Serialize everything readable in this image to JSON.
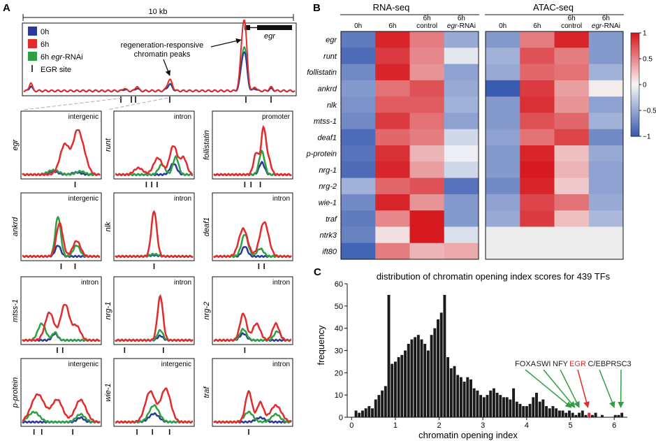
{
  "panel_a": {
    "letter": "A",
    "scale_label": "10 kb",
    "legend": [
      {
        "label": "0h",
        "color": "#2b3a94"
      },
      {
        "label": "6h",
        "color": "#e32b2b"
      },
      {
        "label_prefix": "6h ",
        "label_italic": "egr",
        "label_suffix": "-RNAi",
        "color": "#2ea043"
      },
      {
        "label": "EGR site"
      }
    ],
    "annotation_line1": "regeneration-responsive",
    "annotation_line2": "chromatin peaks",
    "gene_label": "egr",
    "grid_rows": [
      [
        {
          "gene": "egr",
          "region": "intergenic"
        },
        {
          "gene": "runt",
          "region": "intron"
        },
        {
          "gene": "follistatin",
          "region": "promoter"
        }
      ],
      [
        {
          "gene": "ankrd",
          "region": "intergenic"
        },
        {
          "gene": "nlk",
          "region": "intron"
        },
        {
          "gene": "deaf1",
          "region": "intron"
        }
      ],
      [
        {
          "gene": "mtss-1",
          "region": "intron"
        },
        {
          "gene": "nrg-1",
          "region": "intron"
        },
        {
          "gene": "nrg-2",
          "region": "intron"
        }
      ],
      [
        {
          "gene": "p-protein",
          "region": "intergenic"
        },
        {
          "gene": "wie-1",
          "region": "intergenic"
        },
        {
          "gene": "traf",
          "region": "intron"
        }
      ]
    ]
  },
  "panel_b": {
    "letter": "B",
    "rna_title": "RNA-seq",
    "atac_title": "ATAC-seq",
    "columns": [
      {
        "line1": "",
        "main": "0h"
      },
      {
        "line1": "",
        "main": "6h"
      },
      {
        "line1": "6h",
        "main": "control"
      },
      {
        "line1": "6h",
        "main_italic": "egr",
        "main_suffix": "-RNAi"
      }
    ],
    "genes": [
      "egr",
      "runt",
      "follistatin",
      "ankrd",
      "nlk",
      "mtss-1",
      "deaf1",
      "p-protein",
      "nrg-1",
      "nrg-2",
      "wie-1",
      "traf",
      "ntrk3",
      "ift80"
    ],
    "colorbar_ticks": [
      "1",
      "0.5",
      "0",
      "−0.5",
      "−1"
    ]
  },
  "panel_c": {
    "letter": "C",
    "title": "distribution of chromatin opening index scores for 439 TFs",
    "xlabel": "chromatin opening index",
    "ylabel": "frequency",
    "x_ticks": [
      "0",
      "1",
      "2",
      "3",
      "4",
      "5",
      "6"
    ],
    "y_ticks": [
      "0",
      "10",
      "20",
      "30",
      "40",
      "50",
      "60"
    ],
    "annotations": [
      {
        "label": "FOXA",
        "color": "#1a1a1a",
        "arrow": "#2ea043",
        "x": 5.02
      },
      {
        "label": "SWI",
        "color": "#1a1a1a",
        "arrow": "#2ea043",
        "x": 5.1
      },
      {
        "label": "NFY",
        "color": "#1a1a1a",
        "arrow": "#2ea043",
        "x": 5.2
      },
      {
        "label": "EGR",
        "color": "#e32b2b",
        "arrow": "#e32b2b",
        "x": 5.4
      },
      {
        "label": "C/EBP",
        "color": "#1a1a1a",
        "arrow": "#2ea043",
        "x": 6.0
      },
      {
        "label": "RSC3",
        "color": "#1a1a1a",
        "arrow": "#2ea043",
        "x": 6.15
      }
    ]
  },
  "chart_data": [
    {
      "type": "heatmap",
      "title": "RNA-seq",
      "rows": [
        "egr",
        "runt",
        "follistatin",
        "ankrd",
        "nlk",
        "mtss-1",
        "deaf1",
        "p-protein",
        "nrg-1",
        "nrg-2",
        "wie-1",
        "traf",
        "ntrk3",
        "ift80"
      ],
      "columns": [
        "0h",
        "6h",
        "6h control",
        "6h egr-RNAi"
      ],
      "values": [
        [
          -0.8,
          0.95,
          0.55,
          -0.5
        ],
        [
          -0.9,
          0.85,
          0.5,
          -0.1
        ],
        [
          -0.7,
          0.95,
          0.45,
          -0.55
        ],
        [
          -0.6,
          0.6,
          0.75,
          -0.5
        ],
        [
          -0.65,
          0.7,
          0.7,
          -0.45
        ],
        [
          -0.7,
          0.85,
          0.6,
          -0.55
        ],
        [
          -0.9,
          0.65,
          0.55,
          -0.2
        ],
        [
          -0.85,
          0.9,
          0.3,
          -0.05
        ],
        [
          -0.9,
          0.95,
          0.4,
          -0.2
        ],
        [
          -0.45,
          0.65,
          0.75,
          -0.85
        ],
        [
          -0.7,
          0.95,
          0.45,
          -0.6
        ],
        [
          -0.8,
          0.5,
          1.0,
          -0.6
        ],
        [
          -0.75,
          0.1,
          1.0,
          -0.15
        ],
        [
          -0.95,
          0.55,
          0.3,
          0.35
        ]
      ],
      "scale": [
        -1,
        1
      ]
    },
    {
      "type": "heatmap",
      "title": "ATAC-seq",
      "rows": [
        "egr",
        "runt",
        "follistatin",
        "ankrd",
        "nlk",
        "mtss-1",
        "deaf1",
        "p-protein",
        "nrg-1",
        "nrg-2",
        "wie-1",
        "traf",
        "ntrk3",
        "ift80"
      ],
      "columns": [
        "0h",
        "6h",
        "6h control",
        "6h egr-RNAi"
      ],
      "values": [
        [
          -0.6,
          0.55,
          0.95,
          -0.6
        ],
        [
          -0.45,
          0.75,
          0.55,
          -0.6
        ],
        [
          -0.5,
          0.65,
          0.6,
          -0.45
        ],
        [
          -1.0,
          0.85,
          0.4,
          0.05
        ],
        [
          -0.6,
          0.9,
          0.45,
          -0.55
        ],
        [
          -0.6,
          0.75,
          0.65,
          -0.45
        ],
        [
          -0.55,
          0.6,
          0.8,
          -0.7
        ],
        [
          -0.6,
          0.95,
          0.25,
          -0.5
        ],
        [
          -0.6,
          1.0,
          0.3,
          -0.55
        ],
        [
          -0.7,
          0.95,
          0.2,
          -0.55
        ],
        [
          -0.55,
          0.8,
          0.6,
          -0.5
        ],
        [
          -0.5,
          0.85,
          0.25,
          -0.4
        ],
        [
          null,
          null,
          null,
          null
        ],
        [
          null,
          null,
          null,
          null
        ]
      ],
      "scale": [
        -1,
        1
      ]
    },
    {
      "type": "bar",
      "title": "distribution of chromatin opening index scores for 439 TFs",
      "xlabel": "chromatin opening index",
      "ylabel": "frequency",
      "xlim": [
        -0.1,
        6.3
      ],
      "ylim": [
        0,
        60
      ],
      "bin_width": 0.075,
      "x": [
        0.1,
        0.175,
        0.25,
        0.325,
        0.4,
        0.475,
        0.55,
        0.625,
        0.7,
        0.775,
        0.85,
        0.925,
        1.0,
        1.075,
        1.15,
        1.225,
        1.3,
        1.375,
        1.45,
        1.525,
        1.6,
        1.675,
        1.75,
        1.825,
        1.9,
        1.975,
        2.05,
        2.125,
        2.2,
        2.275,
        2.35,
        2.425,
        2.5,
        2.575,
        2.65,
        2.725,
        2.8,
        2.875,
        2.95,
        3.025,
        3.1,
        3.175,
        3.25,
        3.325,
        3.4,
        3.475,
        3.55,
        3.625,
        3.7,
        3.775,
        3.85,
        3.925,
        4.0,
        4.075,
        4.15,
        4.225,
        4.3,
        4.375,
        4.45,
        4.525,
        4.6,
        4.675,
        4.75,
        4.825,
        4.9,
        4.975,
        5.05,
        5.125,
        5.2,
        5.275,
        5.35,
        5.425,
        5.5,
        5.575,
        5.65,
        5.725,
        5.8,
        5.875,
        5.95,
        6.025,
        6.1,
        6.175
      ],
      "values": [
        3,
        2,
        3,
        4,
        5,
        4,
        8,
        10,
        12,
        14,
        55,
        24,
        25,
        27,
        28,
        30,
        33,
        35,
        36,
        37,
        35,
        33,
        30,
        37,
        40,
        44,
        47,
        55,
        27,
        22,
        23,
        19,
        18,
        16,
        18,
        17,
        13,
        12,
        10,
        9,
        10,
        12,
        13,
        11,
        10,
        9,
        9,
        8,
        13,
        7,
        6,
        5,
        5,
        6,
        9,
        11,
        7,
        8,
        5,
        4,
        5,
        4,
        3,
        3,
        2,
        3,
        2,
        1,
        2,
        3,
        1,
        2,
        1,
        2,
        0,
        1,
        0,
        0,
        0,
        1,
        1,
        2
      ],
      "highlight": {
        "x": 5.425,
        "color": "#e32b2b"
      }
    }
  ]
}
